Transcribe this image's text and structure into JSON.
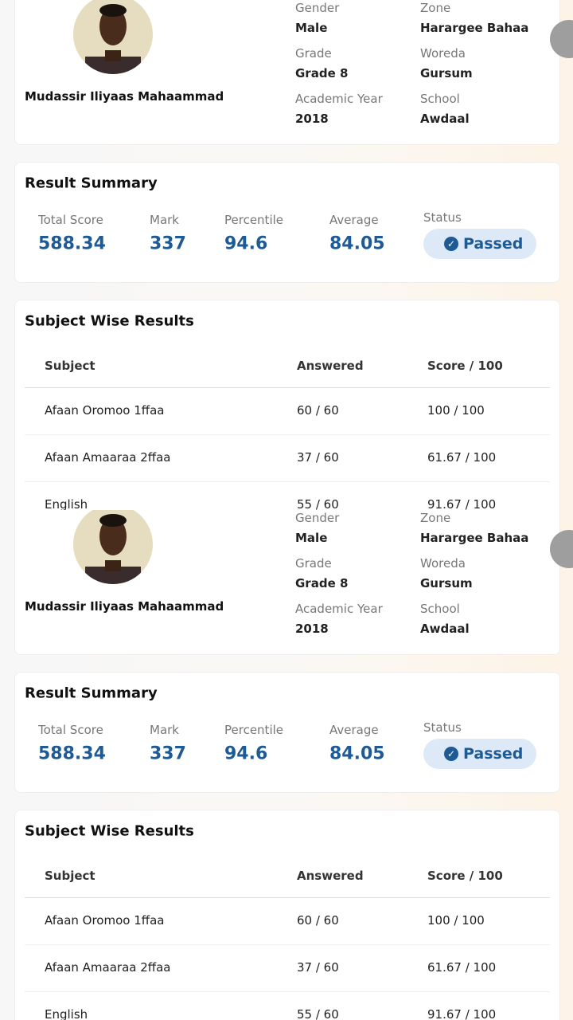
{
  "profile": {
    "name": "Mudassir Iliyaas Mahaammad",
    "fields": [
      {
        "label": "Gender",
        "value": "Male"
      },
      {
        "label": "Grade",
        "value": "Grade 8"
      },
      {
        "label": "Academic Year",
        "value": "2018"
      },
      {
        "label": "Zone",
        "value": "Harargee Bahaa"
      },
      {
        "label": "Woreda",
        "value": "Gursum"
      },
      {
        "label": "School",
        "value": "Awdaal"
      }
    ]
  },
  "summary": {
    "title": "Result Summary",
    "items": [
      {
        "label": "Total Score",
        "value": "588.34"
      },
      {
        "label": "Mark",
        "value": "337"
      },
      {
        "label": "Percentile",
        "value": "94.6"
      },
      {
        "label": "Average",
        "value": "84.05"
      }
    ],
    "status": {
      "label": "Status",
      "value": "Passed"
    }
  },
  "subjects": {
    "title": "Subject Wise Results",
    "columns": [
      "Subject",
      "Answered",
      "Score / 100"
    ],
    "rows": [
      [
        "Afaan Oromoo 1ffaa",
        "60 / 60",
        "100 / 100"
      ],
      [
        "Afaan Amaaraa 2ffaa",
        "37 / 60",
        "61.67 / 100"
      ],
      [
        "English",
        "55 / 60",
        "91.67 / 100"
      ]
    ]
  }
}
